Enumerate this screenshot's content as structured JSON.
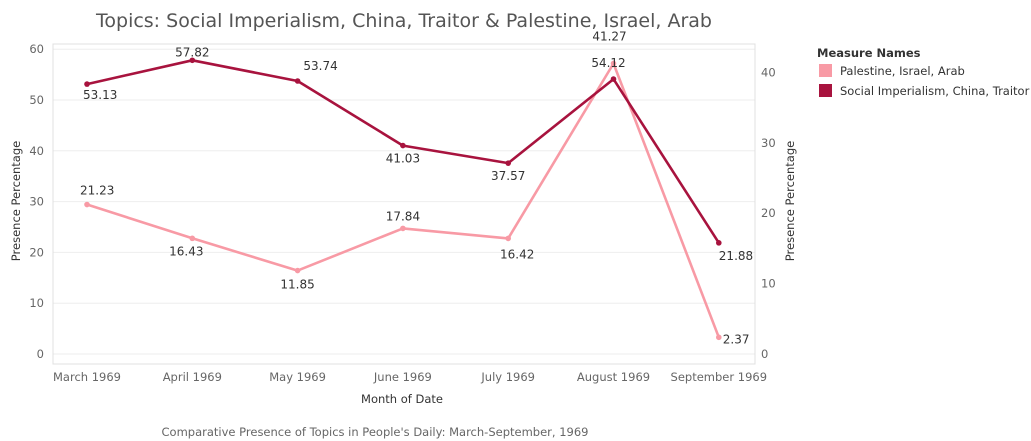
{
  "chart_data": {
    "type": "line",
    "title": "Topics: Social Imperialism, China, Traitor & Palestine, Israel, Arab",
    "caption": "Comparative Presence of Topics in People's Daily: March-September, 1969",
    "xlabel": "Month of Date",
    "ylabel_left": "Presence Percentage",
    "ylabel_right": "Presence Percentage",
    "categories": [
      "March 1969",
      "April 1969",
      "May 1969",
      "June 1969",
      "July 1969",
      "August 1969",
      "September 1969"
    ],
    "y_left": {
      "range": [
        0,
        60
      ],
      "ticks": [
        "0",
        "10",
        "20",
        "30",
        "40",
        "50",
        "60"
      ]
    },
    "y_right": {
      "range": [
        0,
        43.5
      ],
      "ticks": [
        "0",
        "10",
        "20",
        "30",
        "40"
      ]
    },
    "legend": {
      "title": "Measure Names",
      "position": "right",
      "items": [
        "Palestine, Israel, Arab",
        "Social Imperialism, China, Traitor"
      ]
    },
    "grid": "horizontal",
    "series": [
      {
        "name": "Social Imperialism, China, Traitor",
        "axis": "left",
        "color": "#A8133E",
        "values": [
          53.13,
          57.82,
          53.74,
          41.03,
          37.57,
          54.12,
          21.88
        ],
        "labels": [
          "53.13",
          "57.82",
          "53.74",
          "41.03",
          "37.57",
          "54.12",
          "21.88"
        ]
      },
      {
        "name": "Palestine, Israel, Arab",
        "axis": "right",
        "color": "#F89AA5",
        "values": [
          21.23,
          16.43,
          11.85,
          17.84,
          16.42,
          41.27,
          2.37
        ],
        "labels": [
          "21.23",
          "16.43",
          "11.85",
          "17.84",
          "16.42",
          "41.27",
          "2.37"
        ]
      }
    ]
  }
}
